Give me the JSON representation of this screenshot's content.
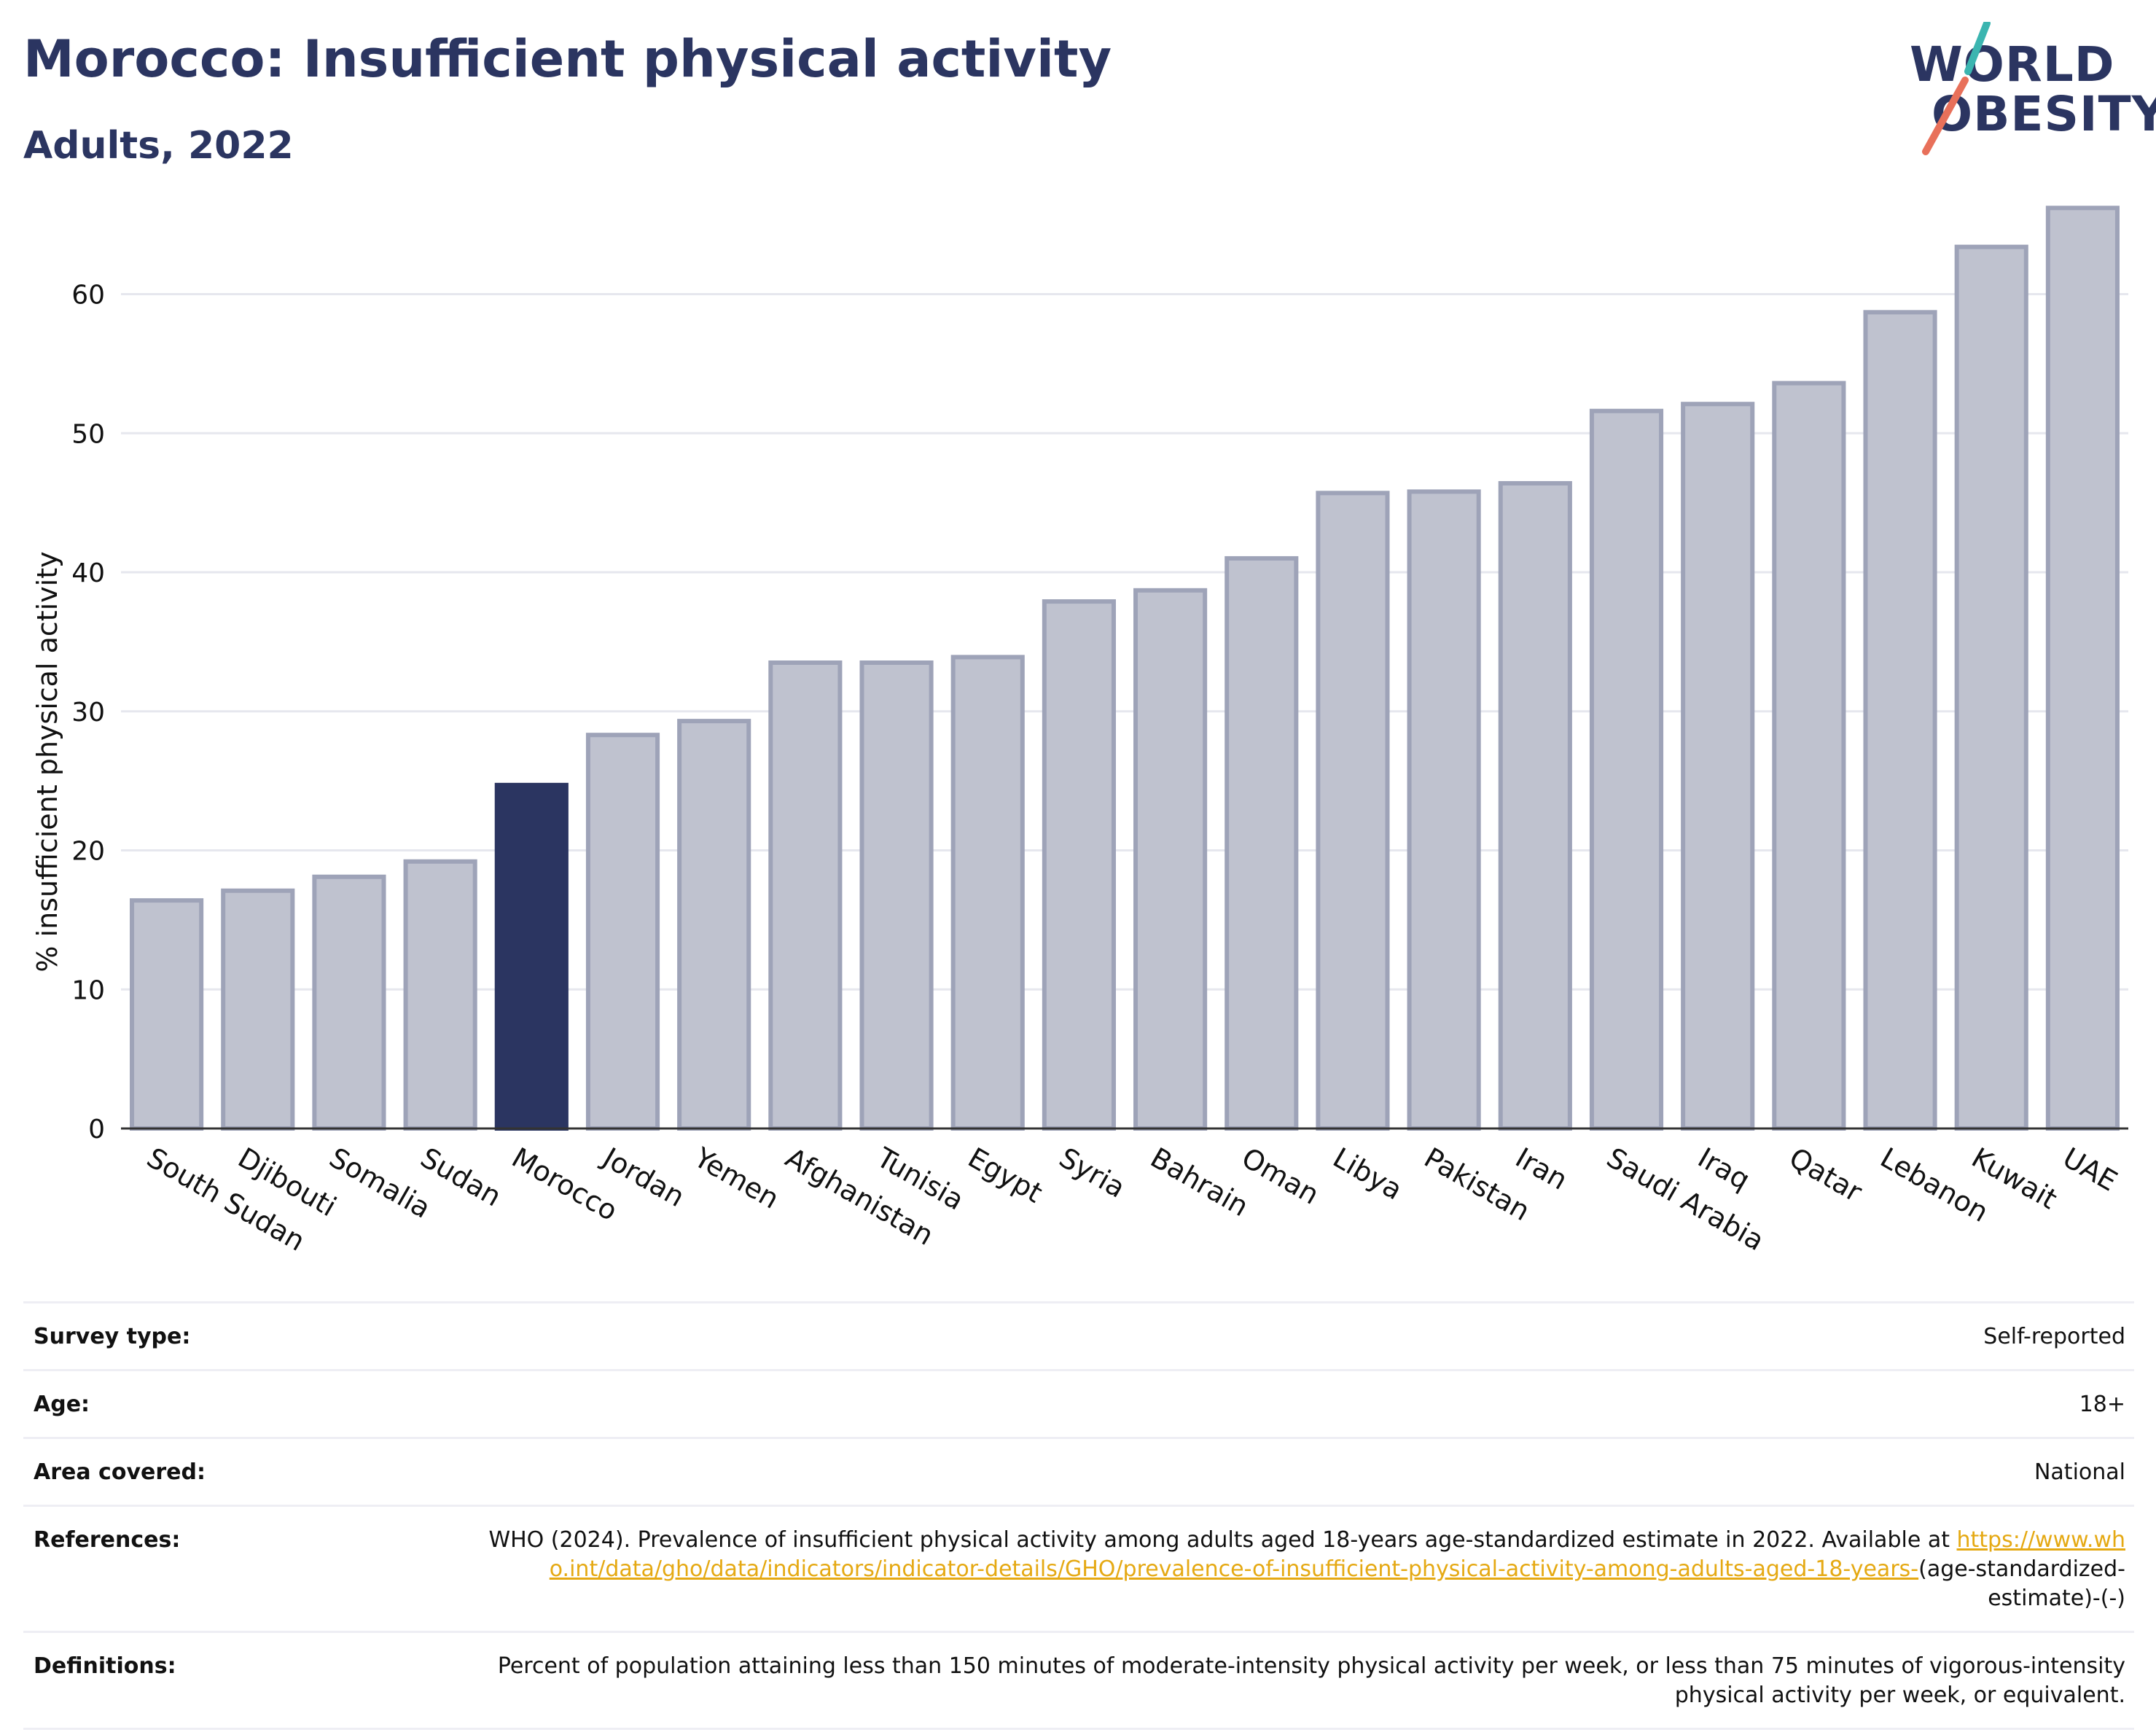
{
  "header": {
    "title": "Morocco: Insufficient physical activity",
    "subtitle": "Adults, 2022"
  },
  "logo": {
    "line1": "WORLD",
    "line2": "OBESITY",
    "slash_colors": [
      "#3bb5b0",
      "#e8705a"
    ]
  },
  "colors": {
    "bar_default": "#bfc2cf",
    "bar_default_stroke": "#9ea3b8",
    "bar_highlight": "#2b3561",
    "grid": "#e6e7ee",
    "axis_text": "#111111",
    "link": "#e5a913"
  },
  "chart_data": {
    "type": "bar",
    "title": "",
    "xlabel": "",
    "ylabel": "% insufficient physical activity",
    "ylim": [
      0,
      67
    ],
    "yticks": [
      0,
      10,
      20,
      30,
      40,
      50,
      60
    ],
    "grid": true,
    "highlight": "Morocco",
    "categories": [
      "South Sudan",
      "Djibouti",
      "Somalia",
      "Sudan",
      "Morocco",
      "Jordan",
      "Yemen",
      "Afghanistan",
      "Tunisia",
      "Egypt",
      "Syria",
      "Bahrain",
      "Oman",
      "Libya",
      "Pakistan",
      "Iran",
      "Saudi Arabia",
      "Iraq",
      "Qatar",
      "Lebanon",
      "Kuwait",
      "UAE"
    ],
    "values": [
      16.4,
      17.1,
      18.1,
      19.2,
      24.7,
      28.3,
      29.3,
      33.5,
      33.5,
      33.9,
      37.9,
      38.7,
      41.0,
      45.7,
      45.8,
      46.4,
      51.6,
      52.1,
      53.6,
      58.7,
      63.4,
      66.2
    ]
  },
  "info": {
    "survey_type_label": "Survey type:",
    "survey_type_value": "Self-reported",
    "age_label": "Age:",
    "age_value": "18+",
    "area_label": "Area covered:",
    "area_value": "National",
    "references_label": "References:",
    "references_text": "WHO (2024). Prevalence of insufficient physical activity among adults aged 18-years age-standardized estimate in 2022. Available at",
    "references_link": "https://www.who.int/data/gho/data/indicators/indicator-details/GHO/prevalence-of-insufficient-physical-activity-among-adults-aged-18-years-",
    "references_suffix": "(age-standardized-estimate)-(-)",
    "definitions_label": "Definitions:",
    "definitions_value": "Percent of population attaining less than 150 minutes of moderate-intensity physical activity per week, or less than 75 minutes of vigorous-intensity physical activity per week, or equivalent."
  }
}
